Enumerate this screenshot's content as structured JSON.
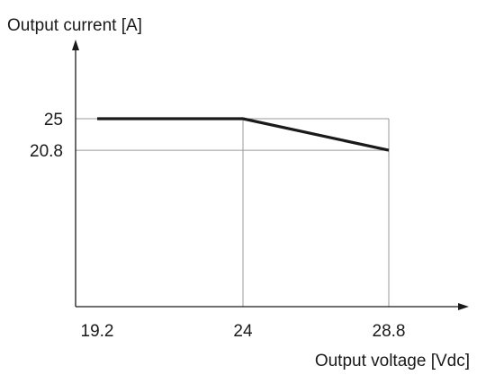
{
  "chart_data": {
    "type": "line",
    "ylabel": "Output current [A]",
    "xlabel": "Output voltage [Vdc]",
    "x_tick_labels": [
      "19.2",
      "24",
      "28.8"
    ],
    "y_tick_labels": [
      "25",
      "20.8"
    ],
    "xlim": [
      19.2,
      30.5
    ],
    "ylim": [
      0,
      30
    ],
    "x_ticks": [
      19.2,
      24,
      28.8
    ],
    "y_ticks": [
      25,
      20.8
    ],
    "grid": true,
    "series": [
      {
        "x": [
          19.2,
          24,
          28.8
        ],
        "y": [
          25,
          25,
          20.8
        ],
        "color": "#1a1a1a"
      }
    ]
  }
}
